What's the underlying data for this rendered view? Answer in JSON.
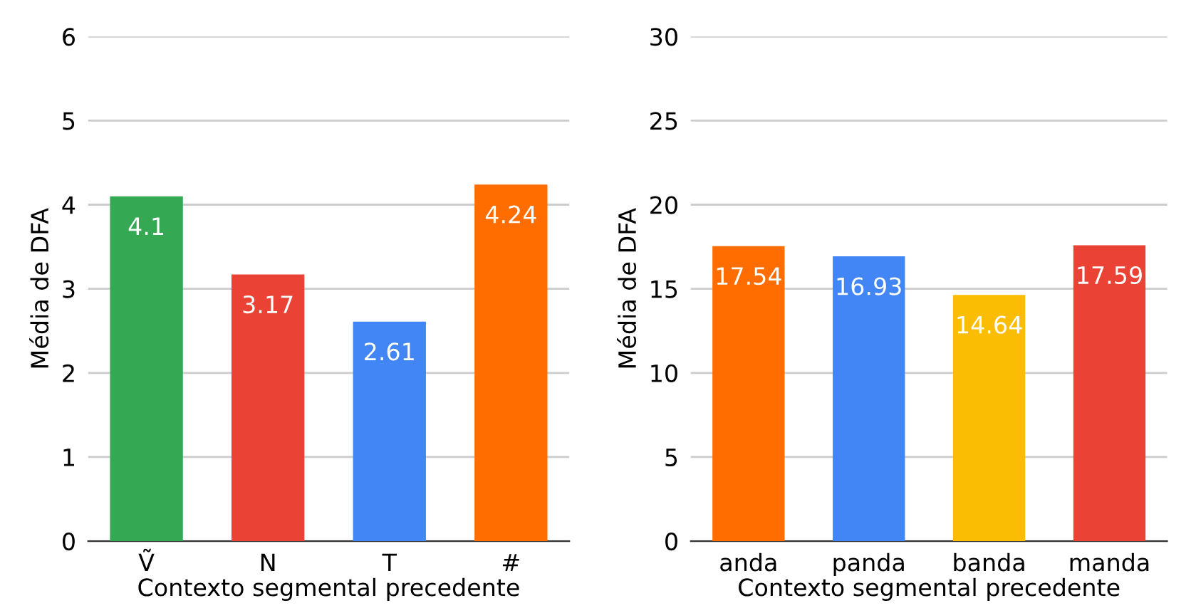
{
  "chart_data": [
    {
      "type": "bar",
      "xlabel": "Contexto segmental precedente",
      "ylabel": "Média de DFA",
      "categories": [
        "Ṽ",
        "N",
        "T",
        "#"
      ],
      "values": [
        4.1,
        3.17,
        2.61,
        4.24
      ],
      "colors": [
        "#34a853",
        "#ea4335",
        "#4285f4",
        "#ff6d01"
      ],
      "ylim": [
        0,
        6
      ],
      "yticks": [
        0,
        1,
        2,
        3,
        4,
        5,
        6
      ],
      "grid": "y",
      "data_labels": true
    },
    {
      "type": "bar",
      "xlabel": "Contexto segmental precedente",
      "ylabel": "Média de DFA",
      "categories": [
        "anda",
        "panda",
        "banda",
        "manda"
      ],
      "values": [
        17.54,
        16.93,
        14.64,
        17.59
      ],
      "colors": [
        "#ff6d01",
        "#4285f4",
        "#fbbc04",
        "#ea4335"
      ],
      "ylim": [
        0,
        30
      ],
      "yticks": [
        0,
        5,
        10,
        15,
        20,
        25,
        30
      ],
      "grid": "y",
      "data_labels": true
    }
  ]
}
